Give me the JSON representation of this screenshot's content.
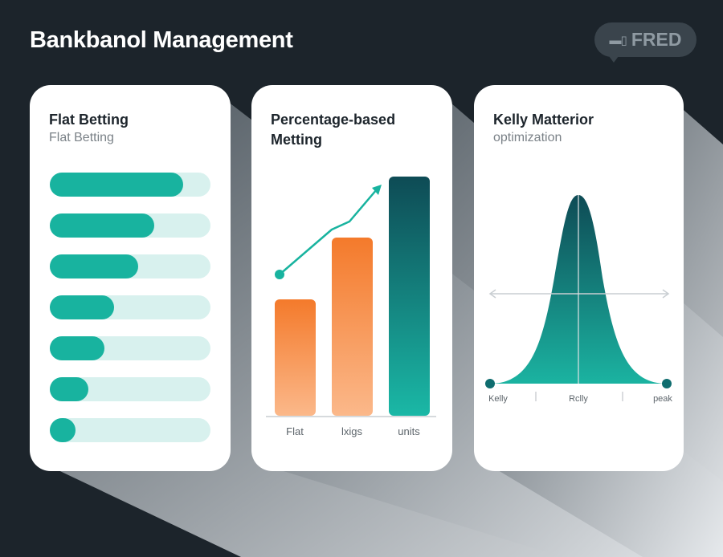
{
  "header": {
    "title": "Bankbanol Management",
    "logo_text": "FRED"
  },
  "cards": {
    "flat": {
      "title": "Flat Betting",
      "subtitle": "Flat Betting",
      "bar_levels": [
        0.83,
        0.65,
        0.55,
        0.4,
        0.34,
        0.24,
        0.16
      ]
    },
    "percentage": {
      "title_line1": "Percentage-based",
      "title_line2": "Metting",
      "labels": [
        "Flat",
        "lxigs",
        "units"
      ]
    },
    "kelly": {
      "title": "Kelly Matterior",
      "subtitle": "optimization",
      "labels": [
        "Kelly",
        "Rclly",
        "peak"
      ]
    }
  },
  "colors": {
    "background": "#1c242b",
    "teal": "#18b39f",
    "teal_light": "#d8f1ee",
    "orange": "#f47a2b",
    "dark_teal": "#0e4b55"
  }
}
